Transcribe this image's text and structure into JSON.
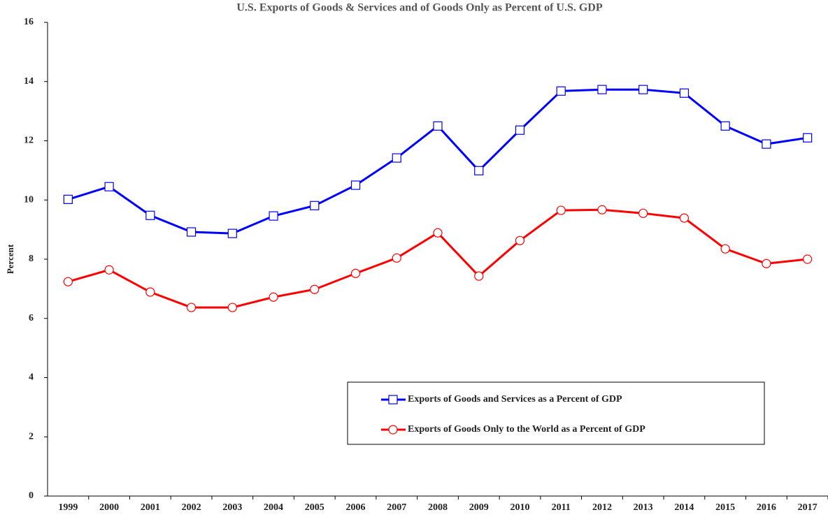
{
  "chart_data": {
    "type": "line",
    "title": "U.S. Exports of Goods & Services and of Goods Only as Percent of U.S. GDP",
    "y_label": "Percent",
    "categories": [
      "1999",
      "2000",
      "2001",
      "2002",
      "2003",
      "2004",
      "2005",
      "2006",
      "2007",
      "2008",
      "2009",
      "2010",
      "2011",
      "2012",
      "2013",
      "2014",
      "2015",
      "2016",
      "2017"
    ],
    "series": [
      {
        "name": "Exports of Goods and Services as a Percent of GDP",
        "color": "#0000ff",
        "marker": "square",
        "values": [
          10.02,
          10.45,
          9.48,
          8.92,
          8.87,
          9.46,
          9.81,
          10.5,
          11.42,
          12.5,
          10.99,
          12.36,
          13.68,
          13.73,
          13.73,
          13.61,
          12.5,
          11.89,
          12.1
        ]
      },
      {
        "name": "Exports of Goods Only to the World as a Percent of GDP",
        "color": "#ff0000",
        "marker": "circle",
        "values": [
          7.24,
          7.64,
          6.89,
          6.37,
          6.37,
          6.72,
          6.98,
          7.52,
          8.04,
          8.89,
          7.43,
          8.63,
          9.65,
          9.67,
          9.55,
          9.39,
          8.35,
          7.85,
          8.0
        ]
      }
    ],
    "ylim": [
      0,
      16
    ],
    "yticks": [
      0,
      2,
      4,
      6,
      8,
      10,
      12,
      14,
      16
    ],
    "grid": false,
    "legend": "lower right"
  }
}
